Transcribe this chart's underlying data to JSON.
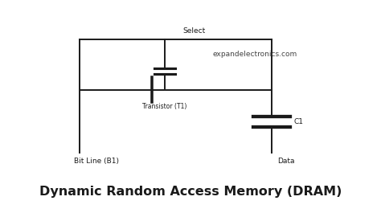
{
  "title": "Dynamic Random Access Memory (DRAM)",
  "watermark": "expandelectronics.com",
  "label_select": "Select",
  "label_transistor": "Transistor (T1)",
  "label_bitline": "Bit Line (B1)",
  "label_data": "Data",
  "label_c1": "C1",
  "bg_color": "#ffffff",
  "line_color": "#1a1a1a",
  "title_fontsize": 11.5,
  "watermark_fontsize": 6.5,
  "label_fontsize": 6.5,
  "transistor_fontsize": 5.5
}
